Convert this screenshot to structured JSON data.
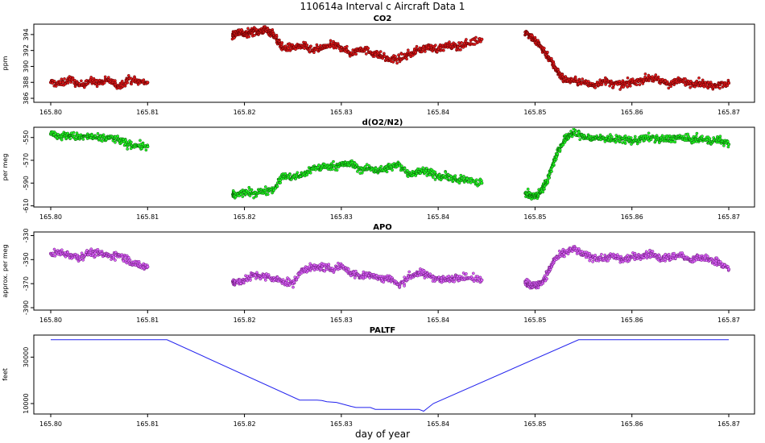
{
  "title": "110614a   Interval c Aircraft Data 1",
  "xlabel": "day of year",
  "chart_data": [
    {
      "type": "scatter",
      "title": "CO2",
      "ylabel": "ppm",
      "xlim": [
        165.8,
        165.87
      ],
      "ylim": [
        385.5,
        395.3
      ],
      "yticks": [
        "386",
        "388",
        "390",
        "392",
        "394"
      ],
      "xticks": [
        "165.80",
        "165.81",
        "165.82",
        "165.83",
        "165.84",
        "165.85",
        "165.86",
        "165.87"
      ],
      "marker_color": "#e41a1c",
      "marker_edge": "#5a0000",
      "series": [
        {
          "points": [
            [
              165.8,
              388.0
            ],
            [
              165.801,
              387.8
            ],
            [
              165.802,
              388.4
            ],
            [
              165.803,
              387.6
            ],
            [
              165.804,
              388.2
            ],
            [
              165.805,
              387.9
            ],
            [
              165.806,
              388.3
            ],
            [
              165.807,
              387.5
            ],
            [
              165.808,
              388.4
            ],
            [
              165.809,
              388.1
            ],
            [
              165.81,
              388.0
            ],
            [
              165.8188,
              393.8
            ],
            [
              165.819,
              394.1
            ],
            [
              165.8195,
              394.4
            ],
            [
              165.82,
              394.0
            ],
            [
              165.8205,
              394.2
            ],
            [
              165.821,
              394.5
            ],
            [
              165.8215,
              394.3
            ],
            [
              165.822,
              394.6
            ],
            [
              165.8225,
              394.4
            ],
            [
              165.823,
              394.1
            ],
            [
              165.8235,
              393.0
            ],
            [
              165.824,
              392.3
            ],
            [
              165.825,
              392.4
            ],
            [
              165.826,
              392.6
            ],
            [
              165.827,
              392.0
            ],
            [
              165.828,
              392.3
            ],
            [
              165.829,
              392.7
            ],
            [
              165.83,
              392.4
            ],
            [
              165.831,
              391.6
            ],
            [
              165.832,
              392.3
            ],
            [
              165.833,
              391.8
            ],
            [
              165.834,
              391.4
            ],
            [
              165.835,
              390.8
            ],
            [
              165.836,
              391.0
            ],
            [
              165.837,
              391.5
            ],
            [
              165.838,
              392.1
            ],
            [
              165.839,
              392.4
            ],
            [
              165.84,
              392.2
            ],
            [
              165.841,
              392.6
            ],
            [
              165.842,
              392.5
            ],
            [
              165.843,
              392.9
            ],
            [
              165.8445,
              393.4
            ],
            [
              165.849,
              394.3
            ],
            [
              165.8495,
              393.9
            ],
            [
              165.85,
              393.2
            ],
            [
              165.8505,
              392.6
            ],
            [
              165.851,
              391.8
            ],
            [
              165.8515,
              391.0
            ],
            [
              165.852,
              390.0
            ],
            [
              165.8525,
              389.1
            ],
            [
              165.853,
              388.4
            ],
            [
              165.854,
              388.2
            ],
            [
              165.855,
              388.0
            ],
            [
              165.856,
              387.6
            ],
            [
              165.857,
              388.2
            ],
            [
              165.858,
              387.8
            ],
            [
              165.859,
              387.7
            ],
            [
              165.86,
              388.0
            ],
            [
              165.861,
              388.3
            ],
            [
              165.862,
              388.6
            ],
            [
              165.863,
              388.1
            ],
            [
              165.864,
              387.8
            ],
            [
              165.865,
              388.2
            ],
            [
              165.866,
              387.9
            ],
            [
              165.867,
              388.0
            ],
            [
              165.868,
              387.6
            ],
            [
              165.869,
              387.8
            ],
            [
              165.87,
              387.9
            ]
          ]
        }
      ]
    },
    {
      "type": "scatter",
      "title": "d(O2/N2)",
      "ylabel": "per meg",
      "xlim": [
        165.8,
        165.87
      ],
      "ylim": [
        -611,
        -541
      ],
      "yticks": [
        "-550",
        "-570",
        "-590",
        "-610"
      ],
      "xticks": [
        "165.80",
        "165.81",
        "165.82",
        "165.83",
        "165.84",
        "165.85",
        "165.86",
        "165.87"
      ],
      "marker_color": "#22ff22",
      "marker_edge": "#0a5a0a",
      "series": [
        {
          "points": [
            [
              165.8,
              -547
            ],
            [
              165.801,
              -549
            ],
            [
              165.802,
              -548
            ],
            [
              165.803,
              -550
            ],
            [
              165.804,
              -549
            ],
            [
              165.805,
              -551
            ],
            [
              165.806,
              -550
            ],
            [
              165.807,
              -552
            ],
            [
              165.808,
              -556
            ],
            [
              165.809,
              -557
            ],
            [
              165.81,
              -558
            ],
            [
              165.8188,
              -600
            ],
            [
              165.819,
              -601
            ],
            [
              165.82,
              -598
            ],
            [
              165.821,
              -599
            ],
            [
              165.822,
              -597
            ],
            [
              165.823,
              -595
            ],
            [
              165.824,
              -584
            ],
            [
              165.825,
              -585
            ],
            [
              165.826,
              -583
            ],
            [
              165.827,
              -577
            ],
            [
              165.828,
              -576
            ],
            [
              165.829,
              -575
            ],
            [
              165.83,
              -574
            ],
            [
              165.831,
              -573
            ],
            [
              165.832,
              -578
            ],
            [
              165.833,
              -577
            ],
            [
              165.834,
              -579
            ],
            [
              165.835,
              -576
            ],
            [
              165.836,
              -574
            ],
            [
              165.837,
              -582
            ],
            [
              165.838,
              -580
            ],
            [
              165.839,
              -579
            ],
            [
              165.84,
              -585
            ],
            [
              165.841,
              -584
            ],
            [
              165.842,
              -588
            ],
            [
              165.843,
              -586
            ],
            [
              165.8445,
              -590
            ],
            [
              165.849,
              -599
            ],
            [
              165.8495,
              -601
            ],
            [
              165.85,
              -602
            ],
            [
              165.8505,
              -598
            ],
            [
              165.851,
              -592
            ],
            [
              165.8515,
              -582
            ],
            [
              165.852,
              -570
            ],
            [
              165.8525,
              -560
            ],
            [
              165.853,
              -553
            ],
            [
              165.8535,
              -548
            ],
            [
              165.854,
              -546
            ],
            [
              165.855,
              -549
            ],
            [
              165.856,
              -551
            ],
            [
              165.857,
              -550
            ],
            [
              165.858,
              -552
            ],
            [
              165.859,
              -551
            ],
            [
              165.86,
              -553
            ],
            [
              165.861,
              -551
            ],
            [
              165.862,
              -550
            ],
            [
              165.863,
              -552
            ],
            [
              165.864,
              -551
            ],
            [
              165.865,
              -550
            ],
            [
              165.866,
              -552
            ],
            [
              165.867,
              -551
            ],
            [
              165.868,
              -553
            ],
            [
              165.869,
              -552
            ],
            [
              165.87,
              -556
            ]
          ]
        }
      ]
    },
    {
      "type": "scatter",
      "title": "APO",
      "ylabel": "approx. per meg",
      "xlim": [
        165.8,
        165.87
      ],
      "ylim": [
        -392,
        -327
      ],
      "yticks": [
        "-330",
        "-350",
        "-370",
        "-390"
      ],
      "xticks": [
        "165.80",
        "165.81",
        "165.82",
        "165.83",
        "165.84",
        "165.85",
        "165.86",
        "165.87"
      ],
      "marker_color": "#e066ff",
      "marker_edge": "#6a1a7a",
      "series": [
        {
          "points": [
            [
              165.8,
              -345
            ],
            [
              165.801,
              -344
            ],
            [
              165.802,
              -346
            ],
            [
              165.803,
              -348
            ],
            [
              165.804,
              -344
            ],
            [
              165.805,
              -345
            ],
            [
              165.806,
              -347
            ],
            [
              165.807,
              -346
            ],
            [
              165.808,
              -350
            ],
            [
              165.809,
              -355
            ],
            [
              165.81,
              -356
            ],
            [
              165.8188,
              -368
            ],
            [
              165.819,
              -369
            ],
            [
              165.82,
              -367
            ],
            [
              165.821,
              -363
            ],
            [
              165.822,
              -364
            ],
            [
              165.823,
              -366
            ],
            [
              165.824,
              -368
            ],
            [
              165.825,
              -370
            ],
            [
              165.826,
              -358
            ],
            [
              165.827,
              -357
            ],
            [
              165.828,
              -356
            ],
            [
              165.829,
              -358
            ],
            [
              165.83,
              -355
            ],
            [
              165.831,
              -361
            ],
            [
              165.832,
              -364
            ],
            [
              165.833,
              -362
            ],
            [
              165.834,
              -366
            ],
            [
              165.835,
              -365
            ],
            [
              165.836,
              -372
            ],
            [
              165.837,
              -364
            ],
            [
              165.838,
              -361
            ],
            [
              165.839,
              -363
            ],
            [
              165.84,
              -366
            ],
            [
              165.841,
              -367
            ],
            [
              165.842,
              -364
            ],
            [
              165.843,
              -365
            ],
            [
              165.8445,
              -367
            ],
            [
              165.849,
              -368
            ],
            [
              165.8495,
              -371
            ],
            [
              165.85,
              -372
            ],
            [
              165.8505,
              -370
            ],
            [
              165.851,
              -366
            ],
            [
              165.8515,
              -358
            ],
            [
              165.852,
              -350
            ],
            [
              165.853,
              -345
            ],
            [
              165.854,
              -341
            ],
            [
              165.855,
              -346
            ],
            [
              165.856,
              -348
            ],
            [
              165.857,
              -349
            ],
            [
              165.858,
              -347
            ],
            [
              165.859,
              -350
            ],
            [
              165.86,
              -348
            ],
            [
              165.861,
              -347
            ],
            [
              165.862,
              -345
            ],
            [
              165.863,
              -349
            ],
            [
              165.864,
              -348
            ],
            [
              165.865,
              -346
            ],
            [
              165.866,
              -351
            ],
            [
              165.867,
              -348
            ],
            [
              165.868,
              -350
            ],
            [
              165.869,
              -352
            ],
            [
              165.87,
              -358
            ]
          ]
        }
      ]
    },
    {
      "type": "line",
      "title": "PALTF",
      "ylabel": "feet",
      "xlim": [
        165.8,
        165.87
      ],
      "ylim": [
        5500,
        39500
      ],
      "yticks": [
        "10000",
        "30000"
      ],
      "xticks": [
        "165.80",
        "165.81",
        "165.82",
        "165.83",
        "165.84",
        "165.85",
        "165.86",
        "165.87"
      ],
      "line_color": "#2222ee",
      "series": [
        {
          "points": [
            [
              165.8,
              37500
            ],
            [
              165.812,
              37500
            ],
            [
              165.8257,
              11500
            ],
            [
              165.8275,
              11500
            ],
            [
              165.828,
              11300
            ],
            [
              165.8285,
              10800
            ],
            [
              165.8295,
              10500
            ],
            [
              165.831,
              8800
            ],
            [
              165.8315,
              8300
            ],
            [
              165.833,
              8300
            ],
            [
              165.8335,
              7500
            ],
            [
              165.838,
              7500
            ],
            [
              165.8385,
              6700
            ],
            [
              165.8395,
              10000
            ],
            [
              165.8545,
              37500
            ],
            [
              165.87,
              37500
            ]
          ]
        }
      ]
    }
  ]
}
